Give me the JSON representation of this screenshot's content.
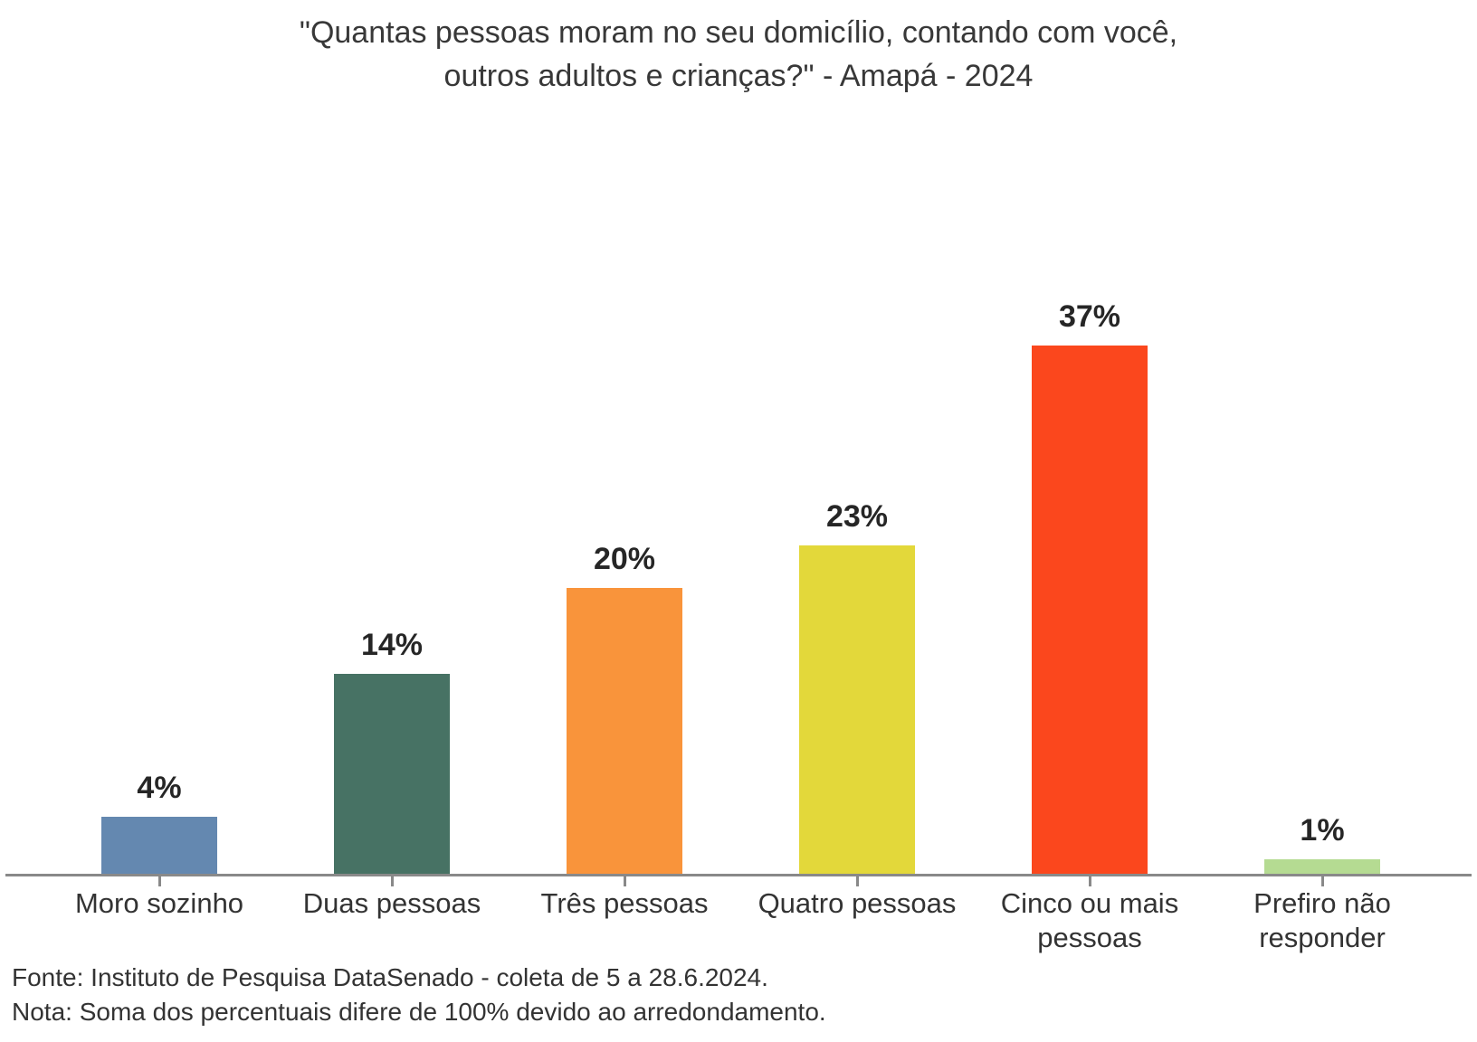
{
  "chart_data": {
    "type": "bar",
    "title": "\"Quantas pessoas moram no seu domicílio, contando com você, outros adultos e crianças?\" - Amapá - 2024",
    "title_lines": [
      "\"Quantas pessoas moram no seu domicílio, contando com você,",
      "outros adultos e crianças?\" - Amapá - 2024"
    ],
    "categories": [
      "Moro sozinho",
      "Duas pessoas",
      "Três pessoas",
      "Quatro pessoas",
      "Cinco ou mais pessoas",
      "Prefiro não responder"
    ],
    "values": [
      4,
      14,
      20,
      23,
      37,
      1
    ],
    "value_labels": [
      "4%",
      "14%",
      "20%",
      "23%",
      "37%",
      "1%"
    ],
    "colors": [
      "#6488B0",
      "#477264",
      "#F9943B",
      "#E3D83A",
      "#FB471D",
      "#B5DB92"
    ],
    "xlabel": "",
    "ylabel": "",
    "ylim": [
      0,
      40
    ],
    "grid": false,
    "legend": false,
    "axis_color": "#898989",
    "text_color": "#333333",
    "background": "#FFFFFF"
  },
  "footer": {
    "source": "Fonte: Instituto de Pesquisa DataSenado - coleta de 5 a 28.6.2024.",
    "note": "Nota: Soma dos percentuais difere de 100% devido ao arredondamento."
  }
}
